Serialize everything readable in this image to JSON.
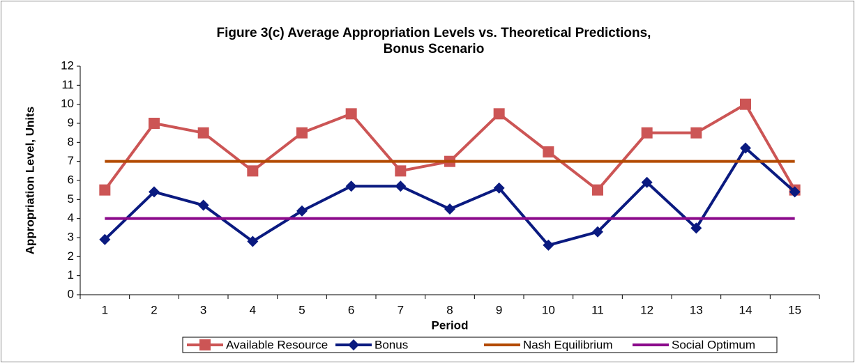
{
  "chart_data": {
    "type": "line",
    "title": [
      "Figure 3(c) Average Appropriation Levels vs. Theoretical Predictions,",
      "Bonus Scenario"
    ],
    "x_label": "Period",
    "y_label": "Appropriation Level, Units",
    "categories": [
      "1",
      "2",
      "3",
      "4",
      "5",
      "6",
      "7",
      "8",
      "9",
      "10",
      "11",
      "12",
      "13",
      "14",
      "15"
    ],
    "series": [
      {
        "name": "Available Resource",
        "color": "#CC5555",
        "marker": "square",
        "values": [
          5.5,
          9,
          8.5,
          6.5,
          8.5,
          9.5,
          6.5,
          7,
          9.5,
          7.5,
          5.5,
          8.5,
          8.5,
          10,
          5.5
        ]
      },
      {
        "name": "Bonus",
        "color": "#0A1A80",
        "marker": "diamond",
        "values": [
          2.9,
          5.4,
          4.7,
          2.8,
          4.4,
          5.7,
          5.7,
          4.5,
          5.6,
          2.6,
          3.3,
          5.9,
          3.5,
          7.7,
          5.4
        ]
      },
      {
        "name": "Nash Equilibrium",
        "color": "#B34A00",
        "marker": "none",
        "values": [
          7,
          7,
          7,
          7,
          7,
          7,
          7,
          7,
          7,
          7,
          7,
          7,
          7,
          7,
          7
        ]
      },
      {
        "name": "Social Optimum",
        "color": "#8B0A8B",
        "marker": "none",
        "values": [
          4,
          4,
          4,
          4,
          4,
          4,
          4,
          4,
          4,
          4,
          4,
          4,
          4,
          4,
          4
        ]
      }
    ],
    "ylim": [
      0,
      12
    ],
    "yticks": [
      0,
      1,
      2,
      3,
      4,
      5,
      6,
      7,
      8,
      9,
      10,
      11,
      12
    ],
    "grid": false,
    "legend": "bottom"
  }
}
